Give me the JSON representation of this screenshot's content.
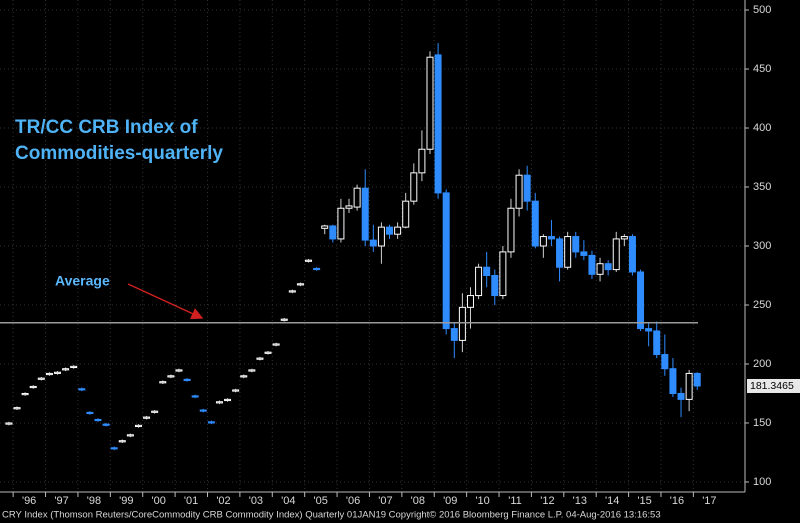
{
  "chart_data": {
    "type": "candlestick",
    "title": [
      "TR/CC CRB Index of",
      "Commodities-quarterly"
    ],
    "annotation": "Average",
    "average": 235,
    "source": "CRY Index (Thomson Reuters/CoreCommodity CRB Commodity Index)  Quarterly 01JAN19  Copyright© 2016 Bloomberg Finance L.P.   04-Aug-2016 13:16:53",
    "up_color": "#ffffff",
    "down_color": "#2f8cff",
    "average_color": "#9a9a9a",
    "grid": true,
    "xlim": [
      1995.1,
      2018.1
    ],
    "xticks": [
      {
        "value": 1996,
        "label": "'96"
      },
      {
        "value": 1997,
        "label": "'97"
      },
      {
        "value": 1998,
        "label": "'98"
      },
      {
        "value": 1999,
        "label": "'99"
      },
      {
        "value": 2000,
        "label": "'00"
      },
      {
        "value": 2001,
        "label": "'01"
      },
      {
        "value": 2002,
        "label": "'02"
      },
      {
        "value": 2003,
        "label": "'03"
      },
      {
        "value": 2004,
        "label": "'04"
      },
      {
        "value": 2005,
        "label": "'05"
      },
      {
        "value": 2006,
        "label": "'06"
      },
      {
        "value": 2007,
        "label": "'07"
      },
      {
        "value": 2008,
        "label": "'08"
      },
      {
        "value": 2009,
        "label": "'09"
      },
      {
        "value": 2010,
        "label": "'10"
      },
      {
        "value": 2011,
        "label": "'11"
      },
      {
        "value": 2012,
        "label": "'12"
      },
      {
        "value": 2013,
        "label": "'13"
      },
      {
        "value": 2014,
        "label": "'14"
      },
      {
        "value": 2015,
        "label": "'15"
      },
      {
        "value": 2016,
        "label": "'16"
      },
      {
        "value": 2017,
        "label": "'17"
      }
    ],
    "ylim": [
      91.5,
      508.5
    ],
    "yticks": [
      100,
      150,
      200,
      250,
      300,
      350,
      400,
      450,
      500
    ],
    "x": [
      1995.375,
      1995.625,
      1995.875,
      1996.125,
      1996.375,
      1996.625,
      1996.875,
      1997.125,
      1997.375,
      1997.625,
      1997.875,
      1998.125,
      1998.375,
      1998.625,
      1998.875,
      1999.125,
      1999.375,
      1999.625,
      1999.875,
      2000.125,
      2000.375,
      2000.625,
      2000.875,
      2001.125,
      2001.375,
      2001.625,
      2001.875,
      2002.125,
      2002.375,
      2002.625,
      2002.875,
      2003.125,
      2003.375,
      2003.625,
      2003.875,
      2004.125,
      2004.375,
      2004.625,
      2004.875,
      2005.125,
      2005.375,
      2005.625,
      2005.875,
      2006.125,
      2006.375,
      2006.625,
      2006.875,
      2007.125,
      2007.375,
      2007.625,
      2007.875,
      2008.125,
      2008.375,
      2008.625,
      2008.875,
      2009.125,
      2009.375,
      2009.625,
      2009.875,
      2010.125,
      2010.375,
      2010.625,
      2010.875,
      2011.125,
      2011.375,
      2011.625,
      2011.875,
      2012.125,
      2012.375,
      2012.625,
      2012.875,
      2013.125,
      2013.375,
      2013.625,
      2013.875,
      2014.125,
      2014.375,
      2014.625,
      2014.875,
      2015.125,
      2015.375,
      2015.625,
      2015.875,
      2016.125,
      2016.375,
      2016.625
    ],
    "open": [
      149,
      162,
      174,
      180,
      187,
      191,
      192,
      195,
      197,
      179,
      159,
      153,
      149,
      129,
      134,
      139,
      147,
      154,
      159,
      184,
      189,
      194,
      187,
      173,
      161,
      151,
      167,
      169,
      177,
      189,
      194,
      204,
      209,
      216,
      237,
      261,
      267,
      287,
      281,
      315,
      317,
      306,
      332,
      333,
      349,
      305,
      300,
      316,
      310,
      316,
      338,
      362,
      382,
      462,
      345,
      230,
      220,
      248,
      258,
      282,
      275,
      258,
      295,
      332,
      360,
      338,
      300,
      308,
      306,
      282,
      308,
      295,
      292,
      276,
      285,
      280,
      306,
      308,
      278,
      230,
      228,
      208,
      196,
      175,
      170,
      192
    ],
    "high": [
      151,
      164,
      176,
      182,
      189,
      193,
      194,
      197,
      199,
      180,
      160,
      154,
      150,
      130,
      136,
      141,
      149,
      156,
      161,
      186,
      191,
      196,
      188,
      174,
      162,
      152,
      169,
      171,
      179,
      191,
      196,
      206,
      211,
      218,
      239,
      263,
      269,
      289,
      282,
      318,
      318,
      340,
      340,
      352,
      365,
      318,
      320,
      318,
      320,
      345,
      370,
      398,
      465,
      472,
      348,
      235,
      260,
      265,
      285,
      295,
      280,
      300,
      340,
      365,
      368,
      345,
      310,
      322,
      308,
      312,
      312,
      305,
      296,
      290,
      288,
      312,
      310,
      310,
      280,
      235,
      236,
      225,
      205,
      180,
      195,
      193
    ],
    "low": [
      148,
      161,
      173,
      179,
      186,
      190,
      191,
      194,
      196,
      177,
      157,
      151,
      147,
      127,
      133,
      138,
      146,
      153,
      158,
      183,
      188,
      193,
      185,
      171,
      159,
      149,
      166,
      168,
      176,
      188,
      193,
      203,
      208,
      215,
      236,
      260,
      266,
      286,
      279,
      310,
      303,
      303,
      328,
      330,
      300,
      295,
      285,
      306,
      306,
      315,
      335,
      355,
      378,
      340,
      225,
      205,
      210,
      230,
      255,
      265,
      250,
      255,
      290,
      325,
      330,
      298,
      290,
      300,
      270,
      280,
      290,
      288,
      272,
      270,
      275,
      278,
      300,
      275,
      228,
      215,
      205,
      190,
      172,
      155,
      160,
      178
    ],
    "close": [
      150,
      163,
      175,
      181,
      188,
      192,
      193,
      196,
      198,
      178,
      158,
      152,
      148,
      128,
      135,
      140,
      148,
      155,
      160,
      185,
      190,
      195,
      186,
      172,
      160,
      150,
      168,
      170,
      178,
      190,
      195,
      205,
      210,
      217,
      238,
      262,
      268,
      288,
      280,
      317,
      306,
      332,
      334,
      349,
      305,
      300,
      316,
      310,
      316,
      338,
      362,
      382,
      460,
      345,
      230,
      220,
      248,
      258,
      282,
      275,
      258,
      295,
      332,
      360,
      338,
      300,
      308,
      306,
      282,
      308,
      295,
      292,
      276,
      285,
      280,
      306,
      308,
      278,
      230,
      228,
      208,
      196,
      175,
      170,
      192,
      181.3465
    ]
  }
}
